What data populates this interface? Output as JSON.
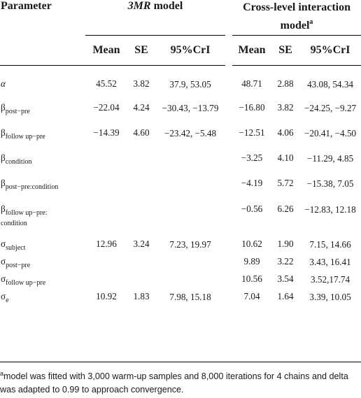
{
  "header": {
    "parameter": "Parameter",
    "group_3mr_italic": "3MR",
    "group_3mr_suffix": " model",
    "group_cross": "Cross-level interaction model",
    "group_cross_marker": "a",
    "cols": [
      "Mean",
      "SE",
      "95%CrI",
      "Mean",
      "SE",
      "95%CrI"
    ]
  },
  "rows": [
    {
      "param": "α",
      "sub": "",
      "sub2": "",
      "m1": "45.52",
      "se1": "3.82",
      "ci1": "37.9, 53.05",
      "m2": "48.71",
      "se2": "2.88",
      "ci2": "43.08, 54.34"
    },
    {
      "param": "β",
      "sub": "post−pre",
      "sub2": "",
      "m1": "−22.04",
      "se1": "4.24",
      "ci1": "−30.43, −13.79",
      "m2": "−16.80",
      "se2": "3.82",
      "ci2": "−24.25, −9.27"
    },
    {
      "param": "β",
      "sub": "follow up−pre",
      "sub2": "",
      "m1": "−14.39",
      "se1": "4.60",
      "ci1": "−23.42, −5.48",
      "m2": "−12.51",
      "se2": "4.06",
      "ci2": "−20.41, −4.50"
    },
    {
      "param": "β",
      "sub": "condition",
      "sub2": "",
      "m1": "",
      "se1": "",
      "ci1": "",
      "m2": "−3.25",
      "se2": "4.10",
      "ci2": "−11.29, 4.85"
    },
    {
      "param": "β",
      "sub": "post−pre:condition",
      "sub2": "",
      "m1": "",
      "se1": "",
      "ci1": "",
      "m2": "−4.19",
      "se2": "5.72",
      "ci2": "−15.38, 7.05"
    },
    {
      "param": "β",
      "sub": "follow up−pre:",
      "sub2": "condition",
      "m1": "",
      "se1": "",
      "ci1": "",
      "m2": "−0.56",
      "se2": "6.26",
      "ci2": "−12.83, 12.18"
    },
    {
      "param": "σ",
      "sub": "subject",
      "sub2": "",
      "m1": "12.96",
      "se1": "3.24",
      "ci1": "7.23, 19.97",
      "m2": "10.62",
      "se2": "1.90",
      "ci2": "7.15, 14.66"
    },
    {
      "param": "σ",
      "sub": "post−pre",
      "sub2": "",
      "m1": "",
      "se1": "",
      "ci1": "",
      "m2": "9.89",
      "se2": "3.22",
      "ci2": "3.43, 16.41"
    },
    {
      "param": "σ",
      "sub": "follow up−pre",
      "sub2": "",
      "m1": "",
      "se1": "",
      "ci1": "",
      "m2": "10.56",
      "se2": "3.54",
      "ci2": "3.52,17.74"
    },
    {
      "param": "σ",
      "sub": "e",
      "sub2": "",
      "m1": "10.92",
      "se1": "1.83",
      "ci1": "7.98, 15.18",
      "m2": "7.04",
      "se2": "1.64",
      "ci2": "3.39, 10.05"
    }
  ],
  "footnote": {
    "marker": "a",
    "text": "model was fitted with 3,000 warm-up samples and 8,000 iterations for 4 chains and delta was adapted to 0.99 to approach convergence."
  }
}
